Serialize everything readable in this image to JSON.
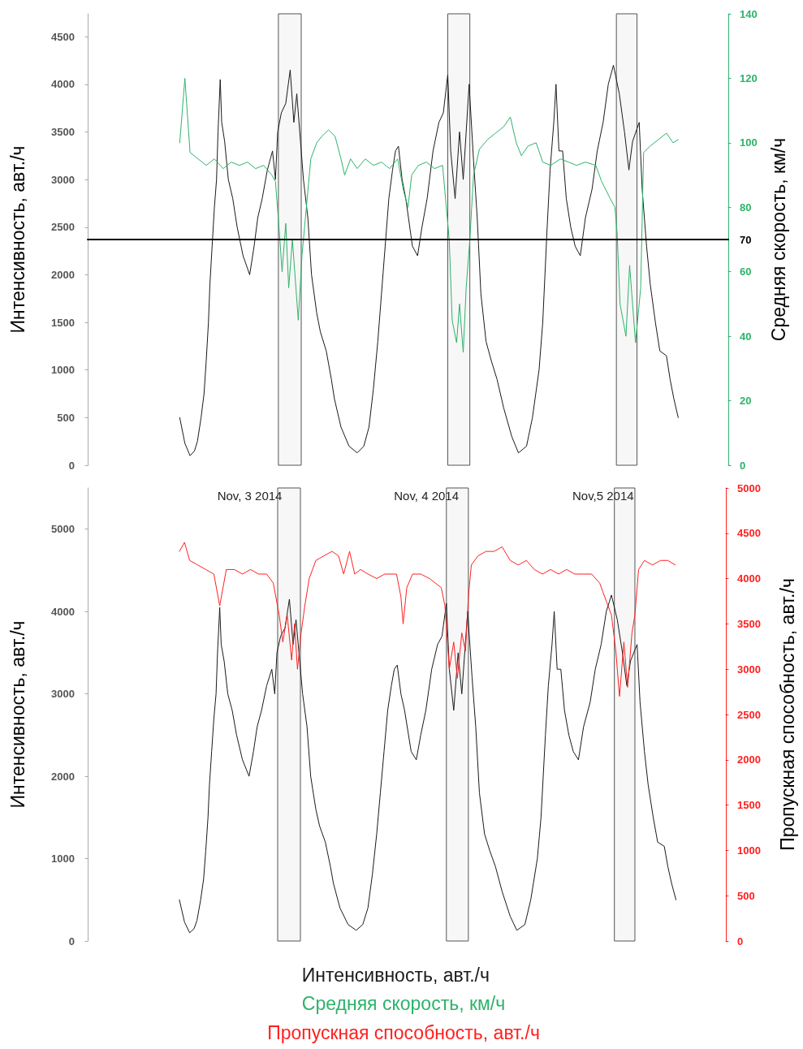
{
  "chart_data": [
    {
      "type": "line",
      "ylabel": "Интенсивность, авт./ч",
      "y2label": "Средняя скорость, км/ч",
      "xlim": [
        "2014-11-02T02:00",
        "2014-11-05T17:00"
      ],
      "xticks": [
        {
          "value": "2014-11-03",
          "label": "Nov, 3 2014"
        },
        {
          "value": "2014-11-04",
          "label": "Nov, 4 2014"
        },
        {
          "value": "2014-11-05",
          "label": "Nov,5 2014"
        }
      ],
      "ylim": [
        0,
        4740
      ],
      "yticks": [
        0,
        500,
        1000,
        1500,
        2000,
        2500,
        3000,
        3500,
        4000,
        4500
      ],
      "y2lim": [
        0,
        140
      ],
      "y2ticks": [
        0,
        20,
        40,
        60,
        80,
        100,
        120,
        140
      ],
      "grid": false,
      "legend": "bottom",
      "marker": "none",
      "line_style": "solid",
      "ref_lines": [
        {
          "axis": "y2",
          "value": 70,
          "label": "70",
          "color": "#000000"
        }
      ],
      "bands": [
        {
          "axis": "x",
          "from": "2014-11-03T03:54",
          "to": "2014-11-03T07:00"
        },
        {
          "axis": "x",
          "from": "2014-11-04T02:54",
          "to": "2014-11-04T05:54"
        },
        {
          "axis": "x",
          "from": "2014-11-05T01:48",
          "to": "2014-11-05T04:36"
        }
      ],
      "series": [
        {
          "name": "Интенсивность, авт./ч",
          "color": "#1a1a1a",
          "x": [
            "2014-11-02T14:30",
            "2014-11-02T15:12",
            "2014-11-02T15:54",
            "2014-11-02T16:30",
            "2014-11-02T16:54",
            "2014-11-02T17:24",
            "2014-11-02T17:48",
            "2014-11-02T18:06",
            "2014-11-02T18:24",
            "2014-11-02T18:36",
            "2014-11-02T18:54",
            "2014-11-02T19:12",
            "2014-11-02T19:30",
            "2014-11-02T19:42",
            "2014-11-02T20:00",
            "2014-11-02T20:12",
            "2014-11-02T20:36",
            "2014-11-02T21:06",
            "2014-11-02T21:42",
            "2014-11-02T22:18",
            "2014-11-02T23:06",
            "2014-11-03T00:00",
            "2014-11-03T00:36",
            "2014-11-03T01:06",
            "2014-11-03T01:42",
            "2014-11-03T02:24",
            "2014-11-03T03:06",
            "2014-11-03T03:30",
            "2014-11-03T03:48",
            "2014-11-03T04:18",
            "2014-11-03T04:54",
            "2014-11-03T05:30",
            "2014-11-03T06:00",
            "2014-11-03T06:24",
            "2014-11-03T06:54",
            "2014-11-03T07:18",
            "2014-11-03T07:54",
            "2014-11-03T08:24",
            "2014-11-03T09:06",
            "2014-11-03T09:36",
            "2014-11-03T10:24",
            "2014-11-03T11:06",
            "2014-11-03T11:30",
            "2014-11-03T12:24",
            "2014-11-03T13:30",
            "2014-11-03T14:36",
            "2014-11-03T15:30",
            "2014-11-03T16:12",
            "2014-11-03T16:48",
            "2014-11-03T17:24",
            "2014-11-03T17:54",
            "2014-11-03T18:24",
            "2014-11-03T18:54",
            "2014-11-03T19:24",
            "2014-11-03T19:48",
            "2014-11-03T20:12",
            "2014-11-03T20:42",
            "2014-11-03T21:12",
            "2014-11-03T22:06",
            "2014-11-03T22:48",
            "2014-11-03T23:24",
            "2014-11-04T00:06",
            "2014-11-04T00:54",
            "2014-11-04T01:42",
            "2014-11-04T02:18",
            "2014-11-04T02:54",
            "2014-11-04T03:18",
            "2014-11-04T03:54",
            "2014-11-04T04:30",
            "2014-11-04T05:00",
            "2014-11-04T05:48",
            "2014-11-04T06:24",
            "2014-11-04T06:54",
            "2014-11-04T07:24",
            "2014-11-04T08:06",
            "2014-11-04T08:48",
            "2014-11-04T09:36",
            "2014-11-04T10:30",
            "2014-11-04T11:36",
            "2014-11-04T12:30",
            "2014-11-04T13:36",
            "2014-11-04T14:24",
            "2014-11-04T15:18",
            "2014-11-04T15:48",
            "2014-11-04T16:24",
            "2014-11-04T16:48",
            "2014-11-04T17:18",
            "2014-11-04T17:36",
            "2014-11-04T18:00",
            "2014-11-04T18:30",
            "2014-11-04T19:00",
            "2014-11-04T19:36",
            "2014-11-04T20:12",
            "2014-11-04T20:54",
            "2014-11-04T21:36",
            "2014-11-04T22:30",
            "2014-11-04T23:12",
            "2014-11-05T00:00",
            "2014-11-05T00:42",
            "2014-11-05T01:24",
            "2014-11-05T02:12",
            "2014-11-05T02:54",
            "2014-11-05T03:30",
            "2014-11-05T04:00",
            "2014-11-05T04:54",
            "2014-11-05T05:18",
            "2014-11-05T05:54",
            "2014-11-05T06:24",
            "2014-11-05T07:06",
            "2014-11-05T07:42",
            "2014-11-05T08:36",
            "2014-11-05T09:06",
            "2014-11-05T09:36",
            "2014-11-05T10:12"
          ],
          "values": [
            500,
            230,
            100,
            150,
            250,
            500,
            750,
            1100,
            1500,
            1900,
            2300,
            2700,
            3000,
            3500,
            4050,
            3600,
            3400,
            3000,
            2800,
            2500,
            2200,
            2000,
            2300,
            2600,
            2800,
            3100,
            3300,
            3000,
            3500,
            3700,
            3800,
            4150,
            3600,
            3900,
            3400,
            3000,
            2600,
            2000,
            1600,
            1400,
            1200,
            900,
            700,
            400,
            200,
            130,
            200,
            400,
            800,
            1300,
            1800,
            2300,
            2800,
            3100,
            3300,
            3350,
            3000,
            2800,
            2300,
            2200,
            2500,
            2800,
            3300,
            3600,
            3700,
            4100,
            3300,
            2800,
            3500,
            3000,
            4000,
            3200,
            2600,
            1800,
            1300,
            1100,
            900,
            600,
            300,
            130,
            200,
            500,
            1000,
            1500,
            2500,
            3100,
            3600,
            4000,
            3300,
            3300,
            2800,
            2500,
            2300,
            2200,
            2600,
            2900,
            3300,
            3600,
            4000,
            4200,
            3900,
            3500,
            3100,
            3400,
            3600,
            2900,
            2300,
            1900,
            1500,
            1200,
            1150,
            900,
            700,
            500
          ]
        },
        {
          "name": "Средняя скорость, км/ч",
          "color": "#2db36a",
          "axis": "y2",
          "x": [
            "2014-11-02T14:30",
            "2014-11-02T15:12",
            "2014-11-02T15:54",
            "2014-11-02T17:00",
            "2014-11-02T18:06",
            "2014-11-02T19:12",
            "2014-11-02T20:24",
            "2014-11-02T21:30",
            "2014-11-02T22:36",
            "2014-11-02T23:42",
            "2014-11-03T00:48",
            "2014-11-03T01:54",
            "2014-11-03T03:00",
            "2014-11-03T03:30",
            "2014-11-03T04:06",
            "2014-11-03T04:24",
            "2014-11-03T04:54",
            "2014-11-03T05:18",
            "2014-11-03T05:48",
            "2014-11-03T06:36",
            "2014-11-03T07:06",
            "2014-11-03T07:42",
            "2014-11-03T08:18",
            "2014-11-03T09:06",
            "2014-11-03T09:48",
            "2014-11-03T10:42",
            "2014-11-03T11:36",
            "2014-11-03T12:24",
            "2014-11-03T12:54",
            "2014-11-03T13:42",
            "2014-11-03T14:36",
            "2014-11-03T15:42",
            "2014-11-03T16:48",
            "2014-11-03T17:54",
            "2014-11-03T19:00",
            "2014-11-03T20:06",
            "2014-11-03T20:54",
            "2014-11-03T21:30",
            "2014-11-03T22:00",
            "2014-11-03T22:54",
            "2014-11-04T00:00",
            "2014-11-04T01:06",
            "2014-11-04T02:12",
            "2014-11-04T02:42",
            "2014-11-04T03:06",
            "2014-11-04T03:30",
            "2014-11-04T04:06",
            "2014-11-04T04:30",
            "2014-11-04T05:00",
            "2014-11-04T05:24",
            "2014-11-04T05:54",
            "2014-11-04T06:24",
            "2014-11-04T07:12",
            "2014-11-04T08:18",
            "2014-11-04T09:24",
            "2014-11-04T10:30",
            "2014-11-04T11:24",
            "2014-11-04T12:12",
            "2014-11-04T12:54",
            "2014-11-04T13:48",
            "2014-11-04T14:54",
            "2014-11-04T15:48",
            "2014-11-04T16:54",
            "2014-11-04T18:12",
            "2014-11-04T19:18",
            "2014-11-04T20:24",
            "2014-11-04T21:36",
            "2014-11-04T23:00",
            "2014-11-04T23:48",
            "2014-11-05T00:54",
            "2014-11-05T01:36",
            "2014-11-05T01:54",
            "2014-11-05T02:18",
            "2014-11-05T03:06",
            "2014-11-05T03:36",
            "2014-11-05T04:24",
            "2014-11-05T05:06",
            "2014-11-05T05:30",
            "2014-11-05T06:24",
            "2014-11-05T07:30",
            "2014-11-05T08:36",
            "2014-11-05T09:30",
            "2014-11-05T10:12"
          ],
          "values": [
            100,
            120,
            97,
            95,
            93,
            95,
            92,
            94,
            93,
            94,
            92,
            93,
            90,
            88,
            70,
            60,
            75,
            55,
            70,
            45,
            65,
            80,
            95,
            100,
            102,
            104,
            102,
            95,
            90,
            95,
            92,
            95,
            93,
            94,
            92,
            95,
            85,
            80,
            90,
            93,
            94,
            92,
            93,
            80,
            70,
            45,
            38,
            50,
            35,
            55,
            70,
            90,
            98,
            101,
            103,
            105,
            108,
            100,
            96,
            99,
            100,
            94,
            93,
            95,
            94,
            93,
            94,
            93,
            88,
            83,
            80,
            72,
            50,
            40,
            62,
            38,
            55,
            97,
            99,
            101,
            103,
            100,
            101
          ]
        }
      ]
    },
    {
      "type": "line",
      "ylabel": "Интенсивность, авт./ч",
      "y2label": "Пропускная способность, авт./ч",
      "xlim": [
        "2014-11-02T02:00",
        "2014-11-05T17:00"
      ],
      "ylim": [
        0,
        5500
      ],
      "yticks": [
        0,
        1000,
        2000,
        3000,
        4000,
        5000
      ],
      "y2lim": [
        0,
        5000
      ],
      "y2ticks": [
        0,
        500,
        1000,
        1500,
        2000,
        2500,
        3000,
        3500,
        4000,
        4500,
        5000
      ],
      "tick_labels": "y",
      "grid": false,
      "legend": "bottom",
      "marker": "none",
      "line_style": "solid",
      "bands": [
        {
          "axis": "x",
          "from": "2014-11-03T03:54",
          "to": "2014-11-03T07:00"
        },
        {
          "axis": "x",
          "from": "2014-11-04T02:54",
          "to": "2014-11-04T05:54"
        },
        {
          "axis": "x",
          "from": "2014-11-05T01:48",
          "to": "2014-11-05T04:36"
        }
      ],
      "series": [
        {
          "color": "#1a1a1a",
          "x": [
            "2014-11-02T14:30",
            "2014-11-02T15:12",
            "2014-11-02T15:54",
            "2014-11-02T16:30",
            "2014-11-02T16:54",
            "2014-11-02T17:24",
            "2014-11-02T17:48",
            "2014-11-02T18:06",
            "2014-11-02T18:24",
            "2014-11-02T18:36",
            "2014-11-02T18:54",
            "2014-11-02T19:12",
            "2014-11-02T19:30",
            "2014-11-02T19:42",
            "2014-11-02T20:00",
            "2014-11-02T20:12",
            "2014-11-02T20:36",
            "2014-11-02T21:06",
            "2014-11-02T21:42",
            "2014-11-02T22:18",
            "2014-11-02T23:06",
            "2014-11-03T00:00",
            "2014-11-03T00:36",
            "2014-11-03T01:06",
            "2014-11-03T01:42",
            "2014-11-03T02:24",
            "2014-11-03T03:06",
            "2014-11-03T03:30",
            "2014-11-03T03:48",
            "2014-11-03T04:18",
            "2014-11-03T04:54",
            "2014-11-03T05:30",
            "2014-11-03T06:00",
            "2014-11-03T06:24",
            "2014-11-03T06:54",
            "2014-11-03T07:18",
            "2014-11-03T07:54",
            "2014-11-03T08:24",
            "2014-11-03T09:06",
            "2014-11-03T09:36",
            "2014-11-03T10:24",
            "2014-11-03T11:06",
            "2014-11-03T11:30",
            "2014-11-03T12:24",
            "2014-11-03T13:30",
            "2014-11-03T14:36",
            "2014-11-03T15:30",
            "2014-11-03T16:12",
            "2014-11-03T16:48",
            "2014-11-03T17:24",
            "2014-11-03T17:54",
            "2014-11-03T18:24",
            "2014-11-03T18:54",
            "2014-11-03T19:24",
            "2014-11-03T19:48",
            "2014-11-03T20:12",
            "2014-11-03T20:42",
            "2014-11-03T21:12",
            "2014-11-03T22:06",
            "2014-11-03T22:48",
            "2014-11-03T23:24",
            "2014-11-04T00:06",
            "2014-11-04T00:54",
            "2014-11-04T01:42",
            "2014-11-04T02:18",
            "2014-11-04T02:54",
            "2014-11-04T03:18",
            "2014-11-04T03:54",
            "2014-11-04T04:30",
            "2014-11-04T05:00",
            "2014-11-04T05:48",
            "2014-11-04T06:24",
            "2014-11-04T06:54",
            "2014-11-04T07:24",
            "2014-11-04T08:06",
            "2014-11-04T08:48",
            "2014-11-04T09:36",
            "2014-11-04T10:30",
            "2014-11-04T11:36",
            "2014-11-04T12:30",
            "2014-11-04T13:36",
            "2014-11-04T14:24",
            "2014-11-04T15:18",
            "2014-11-04T15:48",
            "2014-11-04T16:24",
            "2014-11-04T16:48",
            "2014-11-04T17:18",
            "2014-11-04T17:36",
            "2014-11-04T18:00",
            "2014-11-04T18:30",
            "2014-11-04T19:00",
            "2014-11-04T19:36",
            "2014-11-04T20:12",
            "2014-11-04T20:54",
            "2014-11-04T21:36",
            "2014-11-04T22:30",
            "2014-11-04T23:12",
            "2014-11-05T00:00",
            "2014-11-05T00:42",
            "2014-11-05T01:24",
            "2014-11-05T02:12",
            "2014-11-05T02:54",
            "2014-11-05T03:30",
            "2014-11-05T04:00",
            "2014-11-05T04:54",
            "2014-11-05T05:18",
            "2014-11-05T05:54",
            "2014-11-05T06:24",
            "2014-11-05T07:06",
            "2014-11-05T07:42",
            "2014-11-05T08:36",
            "2014-11-05T09:06",
            "2014-11-05T09:36",
            "2014-11-05T10:12"
          ],
          "values": [
            500,
            230,
            100,
            150,
            250,
            500,
            750,
            1100,
            1500,
            1900,
            2300,
            2700,
            3000,
            3500,
            4050,
            3600,
            3400,
            3000,
            2800,
            2500,
            2200,
            2000,
            2300,
            2600,
            2800,
            3100,
            3300,
            3000,
            3500,
            3700,
            3800,
            4150,
            3600,
            3900,
            3400,
            3000,
            2600,
            2000,
            1600,
            1400,
            1200,
            900,
            700,
            400,
            200,
            130,
            200,
            400,
            800,
            1300,
            1800,
            2300,
            2800,
            3100,
            3300,
            3350,
            3000,
            2800,
            2300,
            2200,
            2500,
            2800,
            3300,
            3600,
            3700,
            4100,
            3300,
            2800,
            3500,
            3000,
            4000,
            3200,
            2600,
            1800,
            1300,
            1100,
            900,
            600,
            300,
            130,
            200,
            500,
            1000,
            1500,
            2500,
            3100,
            3600,
            4000,
            3300,
            3300,
            2800,
            2500,
            2300,
            2200,
            2600,
            2900,
            3300,
            3600,
            4000,
            4200,
            3900,
            3500,
            3100,
            3400,
            3600,
            2900,
            2300,
            1900,
            1500,
            1200,
            1150,
            900,
            700,
            500
          ]
        },
        {
          "name": "Пропускная способность, авт./ч",
          "color": "#ff2020",
          "axis": "y2",
          "x": [
            "2014-11-02T14:30",
            "2014-11-02T15:12",
            "2014-11-02T15:54",
            "2014-11-02T17:00",
            "2014-11-02T18:06",
            "2014-11-02T19:12",
            "2014-11-02T20:00",
            "2014-11-02T20:54",
            "2014-11-02T22:00",
            "2014-11-02T23:06",
            "2014-11-03T00:12",
            "2014-11-03T01:18",
            "2014-11-03T02:24",
            "2014-11-03T03:18",
            "2014-11-03T04:06",
            "2014-11-03T04:36",
            "2014-11-03T05:12",
            "2014-11-03T05:48",
            "2014-11-03T06:12",
            "2014-11-03T06:36",
            "2014-11-03T07:06",
            "2014-11-03T07:36",
            "2014-11-03T08:12",
            "2014-11-03T09:06",
            "2014-11-03T10:12",
            "2014-11-03T11:18",
            "2014-11-03T12:12",
            "2014-11-03T12:54",
            "2014-11-03T13:42",
            "2014-11-03T14:24",
            "2014-11-03T15:12",
            "2014-11-03T16:12",
            "2014-11-03T17:24",
            "2014-11-03T18:30",
            "2014-11-03T20:06",
            "2014-11-03T20:42",
            "2014-11-03T21:00",
            "2014-11-03T21:30",
            "2014-11-03T22:18",
            "2014-11-03T23:24",
            "2014-11-04T00:36",
            "2014-11-04T02:12",
            "2014-11-04T02:42",
            "2014-11-04T03:18",
            "2014-11-04T03:54",
            "2014-11-04T04:24",
            "2014-11-04T05:00",
            "2014-11-04T05:30",
            "2014-11-04T05:54",
            "2014-11-04T06:18",
            "2014-11-04T07:12",
            "2014-11-04T08:18",
            "2014-11-04T09:24",
            "2014-11-04T10:30",
            "2014-11-04T11:36",
            "2014-11-04T12:42",
            "2014-11-04T13:48",
            "2014-11-04T14:54",
            "2014-11-04T16:00",
            "2014-11-04T17:06",
            "2014-11-04T18:12",
            "2014-11-04T19:18",
            "2014-11-04T20:24",
            "2014-11-04T21:36",
            "2014-11-04T22:42",
            "2014-11-04T23:48",
            "2014-11-05T00:42",
            "2014-11-05T01:24",
            "2014-11-05T02:00",
            "2014-11-05T02:30",
            "2014-11-05T03:06",
            "2014-11-05T03:36",
            "2014-11-05T04:12",
            "2014-11-05T04:36",
            "2014-11-05T05:06",
            "2014-11-05T05:54",
            "2014-11-05T07:00",
            "2014-11-05T08:06",
            "2014-11-05T09:06",
            "2014-11-05T10:06"
          ],
          "values": [
            4300,
            4400,
            4200,
            4150,
            4100,
            4050,
            3700,
            4100,
            4100,
            4050,
            4100,
            4050,
            4050,
            3950,
            3600,
            3300,
            3600,
            3100,
            3500,
            3000,
            3400,
            3700,
            4000,
            4200,
            4250,
            4300,
            4250,
            4050,
            4300,
            4050,
            4100,
            4050,
            4000,
            4050,
            4050,
            3800,
            3500,
            3900,
            4050,
            4050,
            4000,
            3900,
            3700,
            3000,
            3300,
            2900,
            3400,
            3200,
            3800,
            4150,
            4250,
            4300,
            4300,
            4350,
            4200,
            4150,
            4200,
            4100,
            4050,
            4100,
            4050,
            4100,
            4050,
            4050,
            4050,
            3950,
            3750,
            3600,
            3200,
            2700,
            3300,
            2800,
            3400,
            3600,
            4100,
            4200,
            4150,
            4200,
            4200,
            4150
          ]
        }
      ]
    }
  ]
}
